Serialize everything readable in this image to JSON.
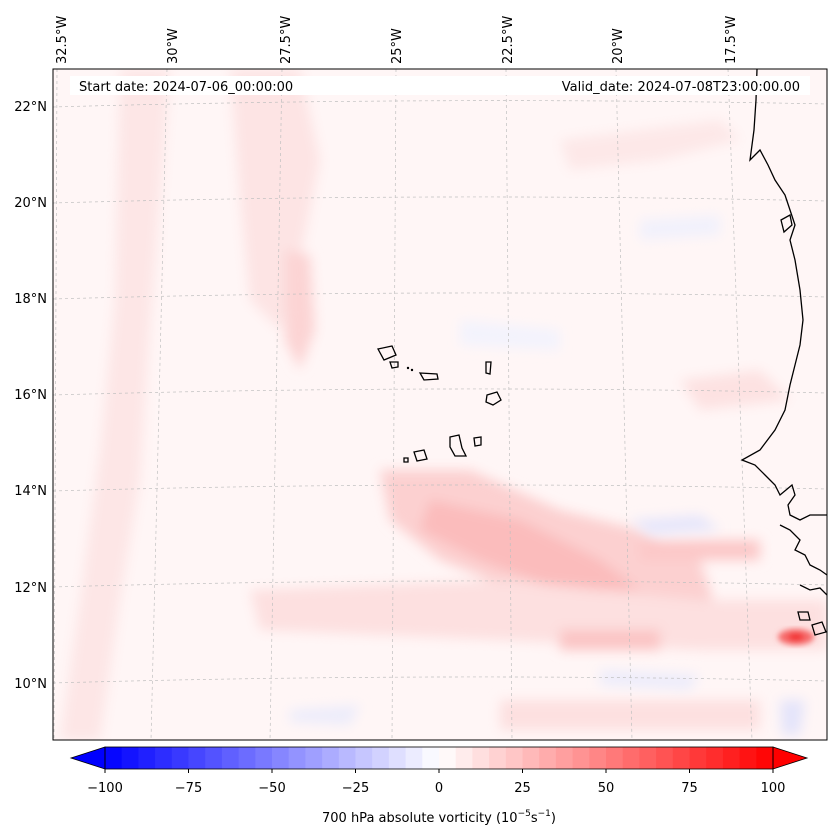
{
  "map": {
    "start_date_text": "Start date: 2024-07-06_00:00:00",
    "valid_date_text": "Valid_date: 2024-07-08T23:00:00.00",
    "longitude_labels": [
      "32.5°W",
      "30°W",
      "27.5°W",
      "25°W",
      "22.5°W",
      "20°W",
      "17.5°W"
    ],
    "latitude_labels": [
      "22°N",
      "20°N",
      "18°N",
      "16°N",
      "14°N",
      "12°N",
      "10°N"
    ],
    "colors": {
      "positive": "#ff0000",
      "negative": "#0000ff",
      "coast": "#000000"
    }
  },
  "colorbar": {
    "ticks": [
      "−100",
      "−75",
      "−50",
      "−25",
      "0",
      "25",
      "50",
      "75",
      "100"
    ],
    "label_prefix": "700 hPa absolute vorticity (10",
    "label_exp1": "−5",
    "label_mid": "s",
    "label_exp2": "−1",
    "label_suffix": ")",
    "min": -100,
    "max": 100
  }
}
